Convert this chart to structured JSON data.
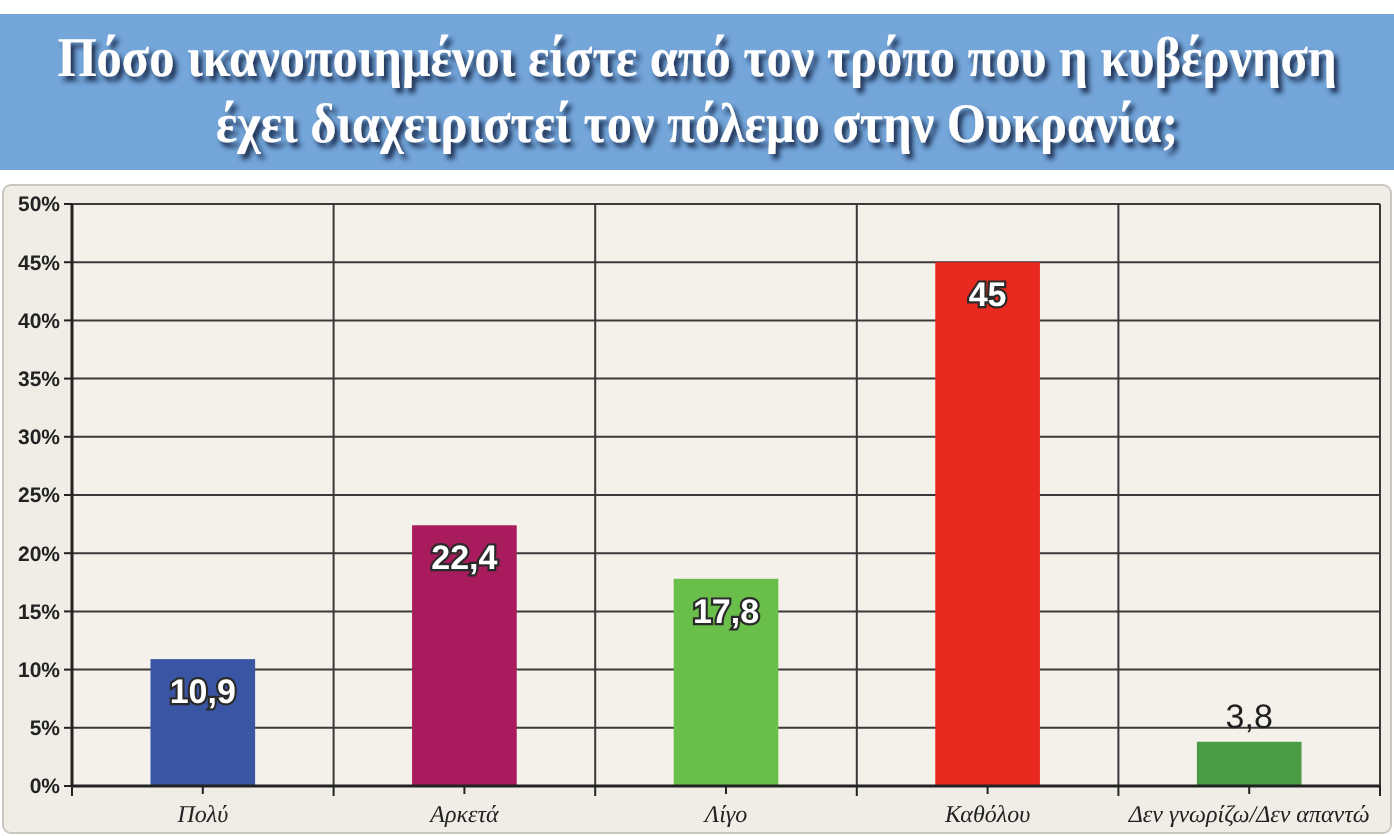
{
  "chart_data": {
    "type": "bar",
    "title": "Πόσο ικανοποιημένοι είστε από τον τρόπο που η κυβέρνηση έχει διαχειριστεί τον πόλεμο στην Ουκρανία;",
    "categories": [
      "Πολύ",
      "Αρκετά",
      "Λίγο",
      "Καθόλου",
      "Δεν γνωρίζω/Δεν απαντώ"
    ],
    "values": [
      10.9,
      22.4,
      17.8,
      45,
      3.8
    ],
    "colors": [
      "#3b55a5",
      "#a81b5c",
      "#6abf4b",
      "#e8291f",
      "#4b9d45"
    ],
    "value_labels": [
      "10,9",
      "22,4",
      "17,8",
      "45",
      "3,8"
    ],
    "ylim": [
      0,
      50
    ],
    "yticks": [
      {
        "value": 0,
        "label": "0%"
      },
      {
        "value": 5,
        "label": "5%"
      },
      {
        "value": 10,
        "label": "10%"
      },
      {
        "value": 15,
        "label": "15%"
      },
      {
        "value": 20,
        "label": "20%"
      },
      {
        "value": 25,
        "label": "25%"
      },
      {
        "value": 30,
        "label": "30%"
      },
      {
        "value": 35,
        "label": "35%"
      },
      {
        "value": 40,
        "label": "40%"
      },
      {
        "value": 45,
        "label": "45%"
      },
      {
        "value": 50,
        "label": "50%"
      }
    ],
    "grid": true
  }
}
